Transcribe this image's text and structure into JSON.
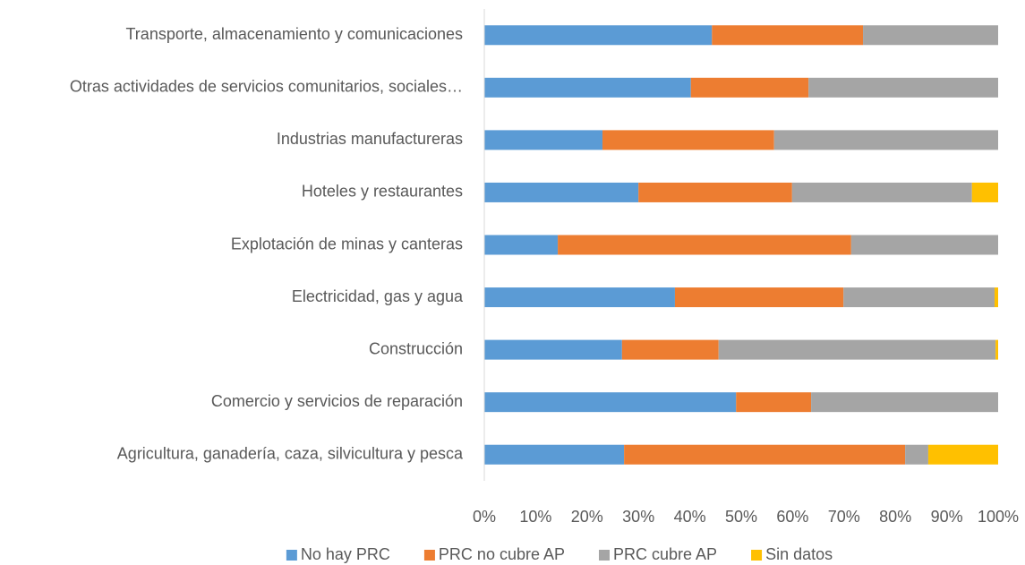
{
  "chart_data": {
    "type": "bar",
    "orientation": "horizontal",
    "stacked": true,
    "categories": [
      "Transporte, almacenamiento y comunicaciones",
      "Otras actividades de servicios comunitarios, sociales…",
      "Industrias manufactureras",
      "Hoteles y restaurantes",
      "Explotación de minas y canteras",
      "Electricidad, gas y agua",
      "Construcción",
      "Comercio y servicios de reparación",
      "Agricultura, ganadería, caza, silvicultura y pesca"
    ],
    "series": [
      {
        "name": "No hay PRC",
        "color": "#5b9bd5",
        "values": [
          44.3,
          40.2,
          23.0,
          30.0,
          14.3,
          37.1,
          26.8,
          49.0,
          27.2
        ]
      },
      {
        "name": "PRC no cubre AP",
        "color": "#ed7d31",
        "values": [
          29.4,
          22.9,
          33.4,
          29.9,
          57.1,
          32.8,
          18.8,
          14.6,
          54.7
        ]
      },
      {
        "name": "PRC cubre AP",
        "color": "#a5a5a5",
        "values": [
          26.3,
          36.9,
          43.6,
          35.0,
          28.6,
          29.4,
          53.9,
          36.4,
          4.5
        ]
      },
      {
        "name": "Sin datos",
        "color": "#ffc000",
        "values": [
          0,
          0,
          0,
          5.1,
          0,
          0.7,
          0.5,
          0,
          13.6
        ]
      }
    ],
    "xlim": [
      0,
      100
    ],
    "xticks": [
      {
        "value": 0,
        "label": "0%"
      },
      {
        "value": 10,
        "label": "10%"
      },
      {
        "value": 20,
        "label": "20%"
      },
      {
        "value": 30,
        "label": "30%"
      },
      {
        "value": 40,
        "label": "40%"
      },
      {
        "value": 50,
        "label": "50%"
      },
      {
        "value": 60,
        "label": "60%"
      },
      {
        "value": 70,
        "label": "70%"
      },
      {
        "value": 80,
        "label": "80%"
      },
      {
        "value": 90,
        "label": "90%"
      },
      {
        "value": 100,
        "label": "100%"
      }
    ],
    "grid": false,
    "legend": "bottom"
  }
}
